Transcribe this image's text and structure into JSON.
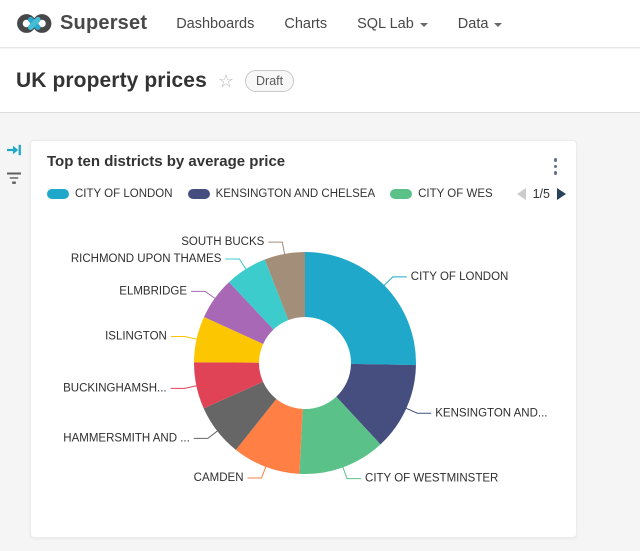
{
  "header": {
    "brand": "Superset",
    "nav": [
      {
        "label": "Dashboards",
        "caret": false
      },
      {
        "label": "Charts",
        "caret": false
      },
      {
        "label": "SQL Lab",
        "caret": true
      },
      {
        "label": "Data",
        "caret": true
      }
    ]
  },
  "page": {
    "title": "UK property prices",
    "status_badge": "Draft",
    "star_icon": "☆"
  },
  "filter_bar": {
    "expand_icon": "expand-filter-bar-arrow",
    "filter_icon": "filter-funnel",
    "accent_color": "#20A7C9"
  },
  "card": {
    "title": "Top ten districts by average price",
    "menu_icon": "kebab-vertical-dots"
  },
  "legend": {
    "items": [
      {
        "label": "CITY OF LONDON",
        "color": "#1FA8C9"
      },
      {
        "label": "KENSINGTON AND CHELSEA",
        "color": "#454E7E"
      },
      {
        "label": "CITY OF WES",
        "color": "#5AC189"
      }
    ],
    "page": "1/5",
    "prev_enabled": false,
    "next_enabled": true
  },
  "chart_data": {
    "type": "pie",
    "donut": true,
    "title": "Top ten districts by average price",
    "note": "values are percentages of the whole, estimated from slice angles; no numeric labels shown in chart",
    "start_angle_deg": 0,
    "clockwise": true,
    "inner_radius_px": 46,
    "outer_radius_px": 111,
    "slices": [
      {
        "label": "CITY OF LONDON",
        "value": 25.3,
        "color": "#1FA8C9"
      },
      {
        "label": "KENSINGTON AND...",
        "value": 12.8,
        "color": "#454E7E"
      },
      {
        "label": "CITY OF WESTMINSTER",
        "value": 12.7,
        "color": "#5AC189"
      },
      {
        "label": "CAMDEN",
        "value": 9.9,
        "color": "#FF7F44"
      },
      {
        "label": "HAMMERSMITH AND ...",
        "value": 7.6,
        "color": "#666666"
      },
      {
        "label": "BUCKINGHAMSH...",
        "value": 6.8,
        "color": "#E04355"
      },
      {
        "label": "ISLINGTON",
        "value": 6.7,
        "color": "#FCC700"
      },
      {
        "label": "ELMBRIDGE",
        "value": 6.2,
        "color": "#A868B5"
      },
      {
        "label": "RICHMOND UPON THAMES",
        "value": 6.1,
        "color": "#3CCCCB"
      },
      {
        "label": "SOUTH BUCKS",
        "value": 5.9,
        "color": "#A38F79"
      }
    ]
  }
}
